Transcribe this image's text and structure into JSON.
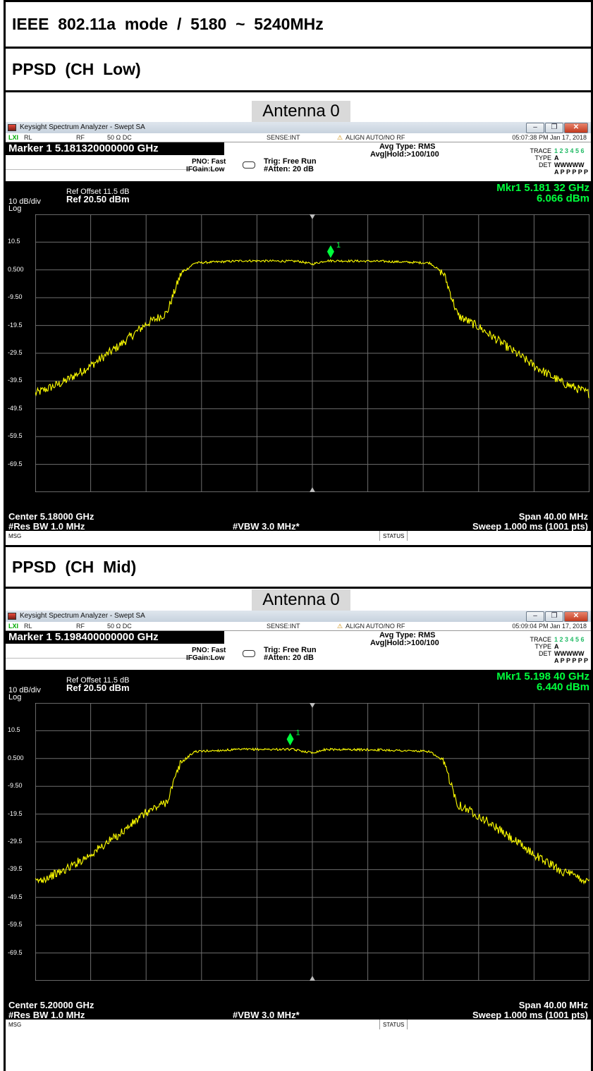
{
  "page": {
    "title": "IEEE  802.11a  mode  /  5180  ~  5240MHz"
  },
  "sections": [
    {
      "heading": "PPSD  (CH  Low)",
      "antenna_label": "Antenna  0",
      "window_title": "Keysight Spectrum Analyzer - Swept SA",
      "status": {
        "rl": "RL",
        "rf": "RF",
        "ohm": "50 Ω  DC",
        "sense": "SENSE:INT",
        "align": "ALIGN AUTO/NO RF",
        "datetime": "05:07:38 PM Jan 17, 2018"
      },
      "marker_title": "Marker 1  5.181320000000 GHz",
      "pno": "PNO: Fast",
      "ifgain": "IFGain:Low",
      "trig": "Trig: Free Run",
      "atten": "#Atten: 20 dB",
      "avg_type": "Avg Type: RMS",
      "avg_hold": "Avg|Hold:>100/100",
      "trace": {
        "trace_label": "TRACE",
        "type_label": "TYPE",
        "det_label": "DET",
        "trace_nums": "1 2 3 4 5 6",
        "type_val": "A WWWWW",
        "det_val": "A P P P P P"
      },
      "ref_offset": "Ref Offset 11.5 dB",
      "ref_level": "Ref 20.50 dBm",
      "scale": "10 dB/div",
      "scale_type": "Log",
      "mkr_freq": "Mkr1 5.181 32 GHz",
      "mkr_level": "6.066 dBm",
      "center": "Center 5.18000 GHz",
      "rbw": "#Res BW  1.0 MHz",
      "vbw": "#VBW  3.0 MHz*",
      "span": "Span 40.00 MHz",
      "sweep": "Sweep  1.000 ms (1001 pts)",
      "msg_label": "MSG",
      "status_label": "STATUS",
      "y_ticks": [
        "10.5",
        "0.500",
        "-9.50",
        "-19.5",
        "-29.5",
        "-39.5",
        "-49.5",
        "-59.5",
        "-69.5"
      ],
      "marker_number": "1",
      "trace_color": "#ffff00",
      "marker_color": "#00ff3c",
      "chart_data": {
        "type": "line",
        "x_unit": "GHz",
        "y_unit": "dBm",
        "xlim": [
          5.16,
          5.2
        ],
        "ylim": [
          -79.5,
          20.5
        ],
        "marker": {
          "x": 5.18132,
          "y": 6.066
        },
        "points": [
          [
            5.16,
            -44
          ],
          [
            5.162,
            -40
          ],
          [
            5.164,
            -34
          ],
          [
            5.166,
            -27
          ],
          [
            5.168,
            -19
          ],
          [
            5.1695,
            -15
          ],
          [
            5.1705,
            -1
          ],
          [
            5.1715,
            3
          ],
          [
            5.175,
            3.8
          ],
          [
            5.179,
            3.6
          ],
          [
            5.18,
            2.6
          ],
          [
            5.181,
            3.8
          ],
          [
            5.185,
            3.6
          ],
          [
            5.1885,
            3
          ],
          [
            5.1895,
            -1
          ],
          [
            5.1905,
            -16
          ],
          [
            5.192,
            -20
          ],
          [
            5.194,
            -27
          ],
          [
            5.196,
            -34
          ],
          [
            5.198,
            -40
          ],
          [
            5.2,
            -44
          ]
        ]
      }
    },
    {
      "heading": "PPSD  (CH  Mid)",
      "antenna_label": "Antenna  0",
      "window_title": "Keysight Spectrum Analyzer - Swept SA",
      "status": {
        "rl": "RL",
        "rf": "RF",
        "ohm": "50 Ω  DC",
        "sense": "SENSE:INT",
        "align": "ALIGN AUTO/NO RF",
        "datetime": "05:09:04 PM Jan 17, 2018"
      },
      "marker_title": "Marker 1  5.198400000000 GHz",
      "pno": "PNO: Fast",
      "ifgain": "IFGain:Low",
      "trig": "Trig: Free Run",
      "atten": "#Atten: 20 dB",
      "avg_type": "Avg Type: RMS",
      "avg_hold": "Avg|Hold:>100/100",
      "trace": {
        "trace_label": "TRACE",
        "type_label": "TYPE",
        "det_label": "DET",
        "trace_nums": "1 2 3 4 5 6",
        "type_val": "A WWWWW",
        "det_val": "A P P P P P"
      },
      "ref_offset": "Ref Offset 11.5 dB",
      "ref_level": "Ref 20.50 dBm",
      "scale": "10 dB/div",
      "scale_type": "Log",
      "mkr_freq": "Mkr1 5.198 40 GHz",
      "mkr_level": "6.440 dBm",
      "center": "Center 5.20000 GHz",
      "rbw": "#Res BW  1.0 MHz",
      "vbw": "#VBW  3.0 MHz*",
      "span": "Span 40.00 MHz",
      "sweep": "Sweep  1.000 ms (1001 pts)",
      "msg_label": "MSG",
      "status_label": "STATUS",
      "y_ticks": [
        "10.5",
        "0.500",
        "-9.50",
        "-19.5",
        "-29.5",
        "-39.5",
        "-49.5",
        "-59.5",
        "-69.5"
      ],
      "marker_number": "1",
      "trace_color": "#ffff00",
      "marker_color": "#00ff3c",
      "chart_data": {
        "type": "line",
        "x_unit": "GHz",
        "y_unit": "dBm",
        "xlim": [
          5.18,
          5.22
        ],
        "ylim": [
          -79.5,
          20.5
        ],
        "marker": {
          "x": 5.1984,
          "y": 6.44
        },
        "points": [
          [
            5.18,
            -44
          ],
          [
            5.182,
            -40
          ],
          [
            5.184,
            -34
          ],
          [
            5.186,
            -27
          ],
          [
            5.188,
            -19
          ],
          [
            5.1895,
            -15
          ],
          [
            5.1905,
            -1
          ],
          [
            5.1915,
            3
          ],
          [
            5.195,
            3.8
          ],
          [
            5.1985,
            3.8
          ],
          [
            5.2,
            2.6
          ],
          [
            5.201,
            3.8
          ],
          [
            5.205,
            3.6
          ],
          [
            5.2085,
            3
          ],
          [
            5.2095,
            -1
          ],
          [
            5.2105,
            -16
          ],
          [
            5.212,
            -20
          ],
          [
            5.214,
            -27
          ],
          [
            5.216,
            -34
          ],
          [
            5.218,
            -40
          ],
          [
            5.22,
            -44
          ]
        ]
      }
    }
  ]
}
